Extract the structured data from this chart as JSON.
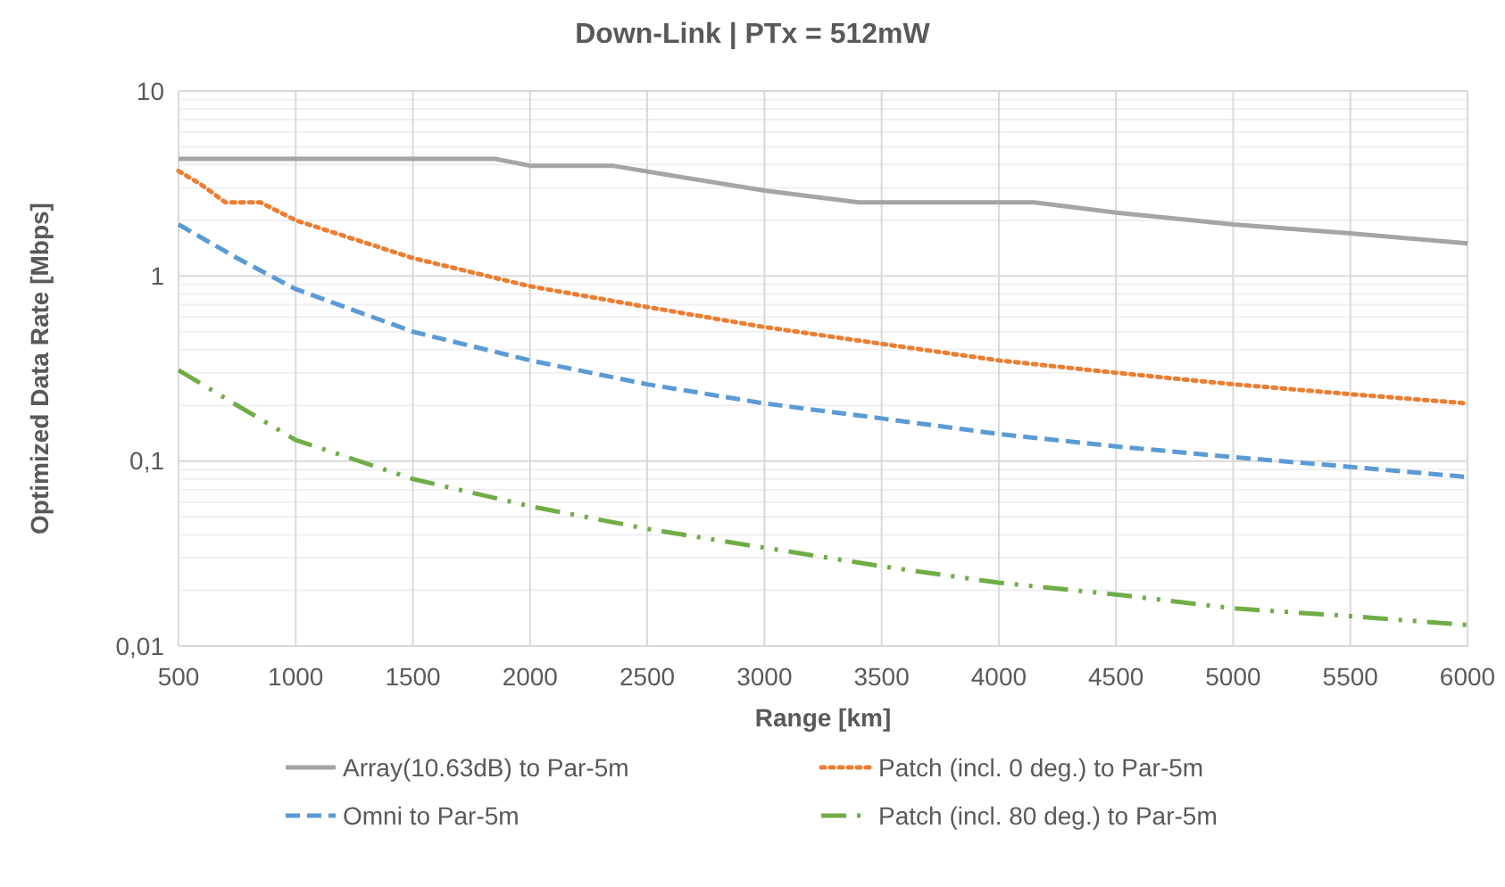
{
  "chart_data": {
    "type": "line",
    "title": "Down-Link | PTx = 512mW",
    "xlabel": "Range [km]",
    "ylabel": "Optimized Data Rate [Mbps]",
    "log": "y",
    "grid": true,
    "legend": "bottom",
    "xlim": [
      500,
      6000
    ],
    "xticks": [
      500,
      1000,
      1500,
      2000,
      2500,
      3000,
      3500,
      4000,
      4500,
      5000,
      5500,
      6000
    ],
    "ylim": [
      0.01,
      10
    ],
    "yticks": [
      {
        "value": 0.01,
        "label": "0,01"
      },
      {
        "value": 0.02,
        "label": null
      },
      {
        "value": 0.03,
        "label": null
      },
      {
        "value": 0.04,
        "label": null
      },
      {
        "value": 0.05,
        "label": null
      },
      {
        "value": 0.06,
        "label": null
      },
      {
        "value": 0.07,
        "label": null
      },
      {
        "value": 0.08,
        "label": null
      },
      {
        "value": 0.09,
        "label": null
      },
      {
        "value": 0.1,
        "label": "0,1"
      },
      {
        "value": 0.2,
        "label": null
      },
      {
        "value": 0.3,
        "label": null
      },
      {
        "value": 0.4,
        "label": null
      },
      {
        "value": 0.5,
        "label": null
      },
      {
        "value": 0.6,
        "label": null
      },
      {
        "value": 0.7,
        "label": null
      },
      {
        "value": 0.8,
        "label": null
      },
      {
        "value": 0.9,
        "label": null
      },
      {
        "value": 1,
        "label": "1"
      },
      {
        "value": 2,
        "label": null
      },
      {
        "value": 3,
        "label": null
      },
      {
        "value": 4,
        "label": null
      },
      {
        "value": 5,
        "label": null
      },
      {
        "value": 6,
        "label": null
      },
      {
        "value": 7,
        "label": null
      },
      {
        "value": 8,
        "label": null
      },
      {
        "value": 9,
        "label": null
      },
      {
        "value": 10,
        "label": "10"
      }
    ],
    "series": [
      {
        "name": "Array(10.63dB) to Par-5m",
        "color": "#a5a5a5",
        "line_style": "solid",
        "x": [
          500,
          1850,
          2000,
          2350,
          2600,
          3000,
          3400,
          4150,
          4500,
          5000,
          5500,
          6000
        ],
        "values": [
          4.3,
          4.3,
          3.95,
          3.95,
          3.5,
          2.9,
          2.5,
          2.5,
          2.2,
          1.9,
          1.7,
          1.5
        ]
      },
      {
        "name": "Patch (incl. 0 deg.) to Par-5m",
        "color": "#ed7d31",
        "line_style": "dotted",
        "x": [
          500,
          600,
          700,
          850,
          1000,
          1500,
          2000,
          2500,
          3000,
          3500,
          4000,
          4500,
          5000,
          5500,
          6000
        ],
        "values": [
          3.7,
          3.1,
          2.5,
          2.5,
          2.0,
          1.25,
          0.88,
          0.68,
          0.53,
          0.43,
          0.35,
          0.3,
          0.26,
          0.23,
          0.205
        ]
      },
      {
        "name": "Omni to Par-5m",
        "color": "#5b9bd5",
        "line_style": "dashed",
        "x": [
          500,
          750,
          1000,
          1500,
          2000,
          2500,
          3000,
          3500,
          4000,
          4500,
          5000,
          5500,
          6000
        ],
        "values": [
          1.9,
          1.25,
          0.85,
          0.5,
          0.35,
          0.26,
          0.205,
          0.17,
          0.14,
          0.12,
          0.105,
          0.093,
          0.082
        ]
      },
      {
        "name": "Patch (incl. 80 deg.) to Par-5m",
        "color": "#70ad47",
        "line_style": "dashdot",
        "x": [
          500,
          750,
          1000,
          1500,
          2000,
          2500,
          3000,
          3500,
          4000,
          4500,
          5000,
          5500,
          6000
        ],
        "values": [
          0.31,
          0.2,
          0.13,
          0.08,
          0.057,
          0.043,
          0.034,
          0.027,
          0.022,
          0.019,
          0.016,
          0.0145,
          0.013
        ]
      }
    ]
  }
}
